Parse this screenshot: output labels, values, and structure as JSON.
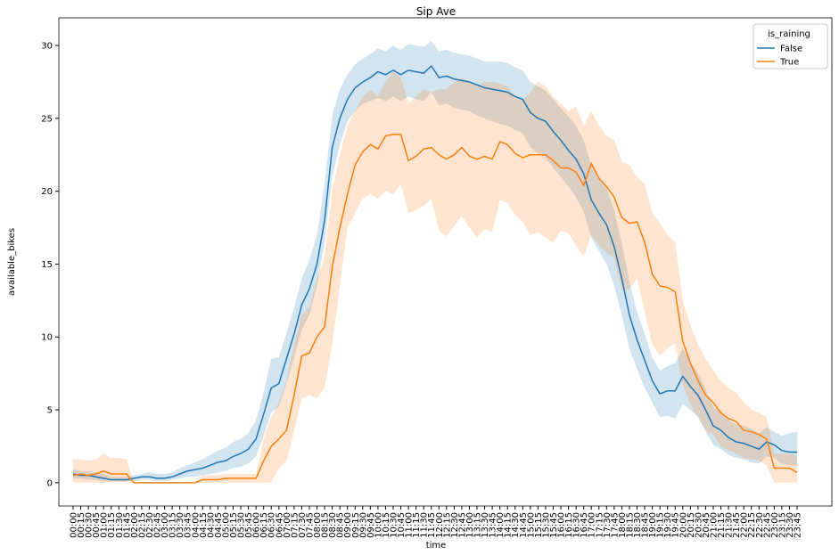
{
  "chart_data": {
    "type": "line",
    "title": "Sip Ave",
    "x_label": "time",
    "y_label": "available_bikes",
    "legend_title": "is_raining",
    "legend_loc": "upper right",
    "categories": [
      "00:00",
      "00:15",
      "00:30",
      "00:45",
      "01:00",
      "01:15",
      "01:30",
      "01:45",
      "02:00",
      "02:15",
      "02:30",
      "02:45",
      "03:00",
      "03:15",
      "03:30",
      "03:45",
      "04:00",
      "04:15",
      "04:30",
      "04:45",
      "05:00",
      "05:15",
      "05:30",
      "05:45",
      "06:00",
      "06:15",
      "06:30",
      "06:45",
      "07:00",
      "07:15",
      "07:30",
      "07:45",
      "08:00",
      "08:15",
      "08:30",
      "08:45",
      "09:00",
      "09:15",
      "09:30",
      "09:45",
      "10:00",
      "10:15",
      "10:30",
      "10:45",
      "11:00",
      "11:15",
      "11:30",
      "11:45",
      "12:00",
      "12:15",
      "12:30",
      "12:45",
      "13:00",
      "13:15",
      "13:30",
      "13:45",
      "14:00",
      "14:15",
      "14:30",
      "14:45",
      "15:00",
      "15:15",
      "15:30",
      "15:45",
      "16:00",
      "16:15",
      "16:30",
      "16:45",
      "17:00",
      "17:15",
      "17:30",
      "17:45",
      "18:00",
      "18:15",
      "18:30",
      "18:45",
      "19:00",
      "19:15",
      "19:30",
      "19:45",
      "20:00",
      "20:15",
      "20:30",
      "20:45",
      "21:00",
      "21:15",
      "21:30",
      "21:45",
      "22:00",
      "22:15",
      "22:30",
      "22:45",
      "23:00",
      "23:15",
      "23:30",
      "23:45"
    ],
    "ylim": [
      -1.6,
      31.9
    ],
    "yticks": [
      0,
      5,
      10,
      15,
      20,
      25,
      30
    ],
    "series": [
      {
        "name": "False",
        "color": "#1f77b4",
        "values": [
          0.6,
          0.5,
          0.5,
          0.4,
          0.3,
          0.2,
          0.2,
          0.2,
          0.3,
          0.4,
          0.4,
          0.3,
          0.3,
          0.4,
          0.6,
          0.8,
          0.9,
          1.0,
          1.2,
          1.4,
          1.5,
          1.8,
          2.0,
          2.3,
          3.0,
          4.7,
          6.5,
          6.8,
          8.5,
          10.2,
          12.2,
          13.3,
          15.0,
          18.0,
          23.0,
          25.0,
          26.3,
          27.1,
          27.5,
          27.8,
          28.2,
          28.0,
          28.3,
          28.0,
          28.3,
          28.2,
          28.1,
          28.6,
          27.8,
          27.9,
          27.7,
          27.6,
          27.5,
          27.3,
          27.1,
          27.0,
          26.9,
          26.8,
          26.5,
          26.3,
          25.4,
          25.0,
          24.8,
          24.1,
          23.5,
          22.8,
          22.2,
          21.2,
          19.4,
          18.5,
          17.7,
          16.2,
          14.0,
          11.5,
          9.8,
          8.4,
          7.0,
          6.1,
          6.3,
          6.3,
          7.3,
          6.6,
          6.0,
          5.0,
          3.9,
          3.6,
          3.1,
          2.8,
          2.7,
          2.5,
          2.3,
          2.8,
          2.6,
          2.2,
          2.1,
          2.1
        ],
        "lower": [
          0.3,
          0.3,
          0.2,
          0.2,
          0.1,
          0.1,
          0.1,
          0.1,
          0.1,
          0.2,
          0.2,
          0.1,
          0.1,
          0.2,
          0.3,
          0.4,
          0.4,
          0.5,
          0.6,
          0.7,
          0.8,
          1.0,
          1.1,
          1.3,
          1.8,
          3.2,
          4.8,
          5.2,
          6.8,
          8.5,
          10.5,
          11.5,
          13.5,
          16.5,
          21.0,
          23.2,
          24.8,
          25.5,
          26.0,
          26.2,
          26.4,
          26.2,
          26.5,
          26.2,
          26.5,
          26.3,
          26.2,
          26.8,
          25.9,
          26.0,
          25.7,
          25.6,
          25.5,
          25.2,
          25.0,
          24.8,
          24.6,
          24.5,
          24.2,
          24.0,
          23.0,
          22.6,
          22.3,
          21.6,
          21.0,
          20.3,
          19.6,
          18.6,
          16.8,
          15.9,
          15.0,
          13.5,
          11.5,
          9.2,
          7.8,
          6.5,
          5.5,
          4.5,
          4.6,
          4.4,
          5.4,
          5.0,
          4.5,
          3.5,
          2.6,
          2.3,
          1.9,
          1.7,
          1.6,
          1.4,
          1.3,
          1.8,
          1.7,
          1.3,
          1.2,
          1.2
        ],
        "upper": [
          0.9,
          0.8,
          0.8,
          0.7,
          0.6,
          0.4,
          0.4,
          0.4,
          0.5,
          0.6,
          0.7,
          0.6,
          0.6,
          0.7,
          1.0,
          1.2,
          1.4,
          1.6,
          1.9,
          2.2,
          2.4,
          2.8,
          3.0,
          3.4,
          4.3,
          6.2,
          8.5,
          8.6,
          10.3,
          12.0,
          14.0,
          15.3,
          17.0,
          20.5,
          25.2,
          27.0,
          28.0,
          28.7,
          29.1,
          29.4,
          29.8,
          29.6,
          30.0,
          29.7,
          30.1,
          30.0,
          29.9,
          30.3,
          29.6,
          29.7,
          29.5,
          29.4,
          29.3,
          29.1,
          28.9,
          28.9,
          28.9,
          28.8,
          28.5,
          28.3,
          27.5,
          27.2,
          26.9,
          26.3,
          25.7,
          25.1,
          24.5,
          23.5,
          21.8,
          20.9,
          20.2,
          18.7,
          16.4,
          13.8,
          11.7,
          10.2,
          8.6,
          7.7,
          8.0,
          8.2,
          9.2,
          8.3,
          7.5,
          6.4,
          5.2,
          4.9,
          4.3,
          4.0,
          3.9,
          3.7,
          3.4,
          3.8,
          3.5,
          3.2,
          3.4,
          3.5
        ]
      },
      {
        "name": "True",
        "color": "#ff7f0e",
        "values": [
          0.5,
          0.6,
          0.5,
          0.6,
          0.8,
          0.6,
          0.6,
          0.6,
          0.0,
          0.0,
          0.0,
          0.0,
          0.0,
          0.0,
          0.0,
          0.0,
          0.0,
          0.2,
          0.2,
          0.2,
          0.3,
          0.3,
          0.3,
          0.3,
          0.3,
          1.5,
          2.5,
          3.0,
          3.6,
          6.0,
          8.7,
          8.9,
          10.0,
          10.7,
          14.8,
          17.5,
          19.8,
          21.8,
          22.7,
          23.2,
          22.9,
          23.8,
          23.9,
          23.9,
          22.1,
          22.4,
          22.9,
          23.0,
          22.5,
          22.2,
          22.5,
          23.0,
          22.4,
          22.2,
          22.4,
          22.2,
          23.4,
          23.2,
          22.6,
          22.3,
          22.5,
          22.5,
          22.5,
          22.1,
          21.6,
          21.6,
          21.3,
          20.4,
          21.9,
          20.9,
          20.3,
          19.6,
          18.2,
          17.8,
          17.9,
          16.5,
          14.3,
          13.5,
          13.4,
          13.1,
          9.7,
          8.2,
          7.0,
          6.0,
          5.5,
          4.8,
          4.4,
          4.2,
          3.6,
          3.5,
          3.3,
          3.0,
          1.0,
          1.0,
          1.0,
          0.7
        ],
        "lower": [
          0.0,
          0.0,
          0.0,
          0.0,
          0.0,
          0.0,
          0.0,
          0.0,
          0.0,
          0.0,
          0.0,
          0.0,
          0.0,
          0.0,
          0.0,
          0.0,
          0.0,
          0.0,
          0.0,
          0.0,
          0.0,
          0.0,
          0.0,
          0.0,
          0.0,
          0.0,
          0.0,
          1.0,
          1.5,
          3.5,
          5.8,
          6.0,
          5.8,
          6.5,
          9.5,
          13.5,
          17.5,
          18.5,
          19.5,
          19.8,
          19.5,
          20.0,
          19.8,
          20.5,
          18.5,
          18.7,
          19.0,
          19.5,
          17.3,
          16.9,
          17.6,
          18.3,
          17.5,
          16.8,
          17.4,
          17.2,
          19.4,
          19.2,
          18.4,
          17.9,
          17.0,
          17.2,
          16.8,
          16.5,
          17.3,
          17.1,
          16.3,
          15.5,
          17.0,
          16.3,
          15.8,
          15.4,
          13.2,
          13.3,
          14.0,
          11.7,
          9.5,
          8.7,
          9.2,
          9.6,
          6.7,
          5.4,
          4.5,
          3.6,
          3.3,
          2.5,
          2.2,
          2.0,
          1.7,
          1.6,
          1.5,
          1.2,
          0.0,
          0.0,
          0.0,
          0.0
        ],
        "upper": [
          1.6,
          1.6,
          1.5,
          1.6,
          2.0,
          1.7,
          1.7,
          1.6,
          0.0,
          0.0,
          0.0,
          0.0,
          0.0,
          0.0,
          0.0,
          0.0,
          0.0,
          0.5,
          0.5,
          0.5,
          0.6,
          0.6,
          0.6,
          0.6,
          0.6,
          3.0,
          4.5,
          5.5,
          7.0,
          9.5,
          11.5,
          12.0,
          14.0,
          15.5,
          20.0,
          22.5,
          24.5,
          25.5,
          26.5,
          27.0,
          26.5,
          27.5,
          28.2,
          27.8,
          26.0,
          26.5,
          27.0,
          26.8,
          27.0,
          27.0,
          27.5,
          27.8,
          27.5,
          27.2,
          27.5,
          27.5,
          27.4,
          27.2,
          26.5,
          26.2,
          26.8,
          27.5,
          27.2,
          26.5,
          26.0,
          25.5,
          25.8,
          24.5,
          25.5,
          24.5,
          23.8,
          23.5,
          22.0,
          21.8,
          21.0,
          20.5,
          18.5,
          17.8,
          17.0,
          16.5,
          12.5,
          10.8,
          9.5,
          8.5,
          7.7,
          7.0,
          6.5,
          6.2,
          5.5,
          5.0,
          4.8,
          4.5,
          2.0,
          2.0,
          2.0,
          1.8
        ]
      }
    ]
  }
}
